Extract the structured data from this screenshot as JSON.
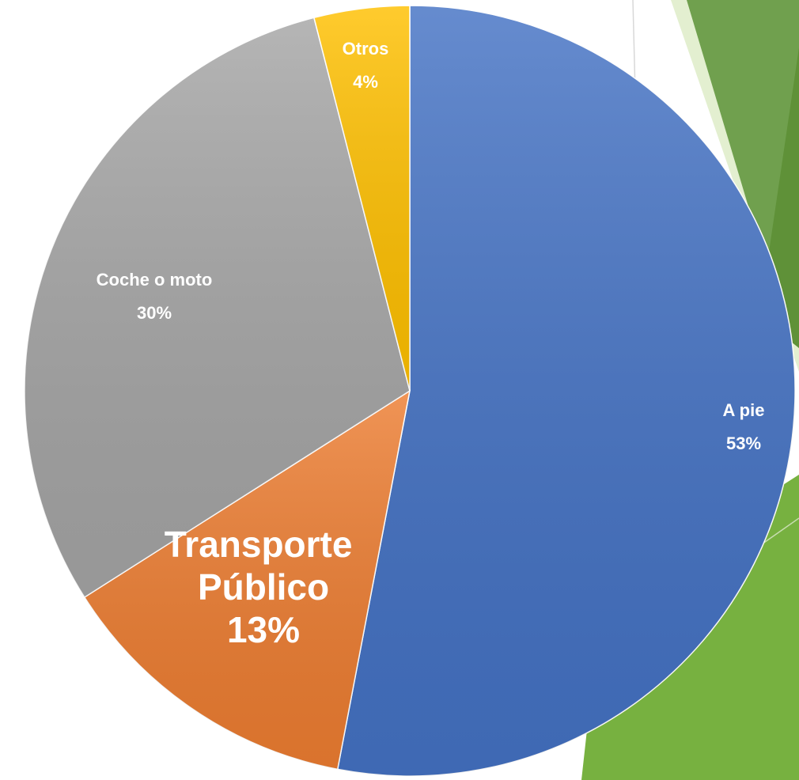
{
  "chart_data": {
    "type": "pie",
    "categories": [
      "A pie",
      "Transporte Público",
      "Coche o moto",
      "Otros"
    ],
    "values": [
      53,
      13,
      30,
      4
    ],
    "value_labels": [
      "53%",
      "13%",
      "30%",
      "4%"
    ],
    "colors": [
      "#4472c4",
      "#ed7d31",
      "#a5a5a5",
      "#ffc000"
    ]
  }
}
